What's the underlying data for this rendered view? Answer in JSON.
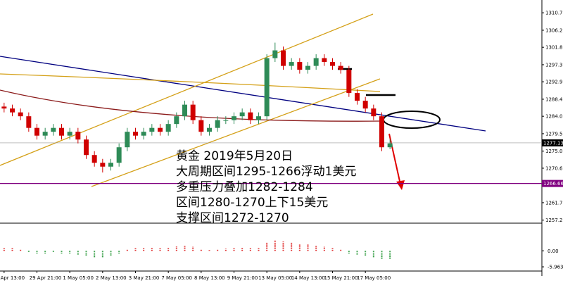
{
  "chart_data": {
    "type": "candlestick",
    "categories": [
      "Apr 13:00",
      null,
      null,
      null,
      "29 Apr 21:00",
      null,
      null,
      null,
      "1 May 05:00",
      null,
      null,
      null,
      "2 May 13:00",
      null,
      null,
      null,
      "3 May 21:00",
      null,
      null,
      null,
      "7 May 05:00",
      null,
      null,
      null,
      "8 May 13:00",
      null,
      null,
      null,
      "9 May 21:00",
      null,
      null,
      null,
      "13 May 05:00",
      null,
      null,
      null,
      "14 May 13:00",
      null,
      null,
      null,
      "15 May 21:00",
      null,
      null,
      null,
      "17 May 05:00",
      null,
      null,
      null
    ],
    "open": [
      1286.5,
      1286,
      1285,
      1284,
      1281,
      1279,
      1280,
      1281,
      1279,
      1280,
      1278,
      1274,
      1272,
      1271,
      1272,
      1276,
      1280,
      1279,
      1280,
      1281,
      1280,
      1282,
      1284,
      1287,
      1283,
      1280,
      1281,
      1283,
      1283,
      1284,
      1285,
      1283,
      1284,
      1299,
      1301,
      1297,
      1298,
      1296,
      1297,
      1299,
      1298,
      1297,
      1296,
      1290,
      1288,
      1286,
      1284,
      1276
    ],
    "close": [
      1286,
      1285,
      1284,
      1281,
      1279,
      1280,
      1281,
      1279,
      1280,
      1278,
      1274,
      1272,
      1271,
      1272,
      1276,
      1280,
      1279,
      1280,
      1281,
      1280,
      1282,
      1284,
      1287,
      1283,
      1280,
      1281,
      1283,
      1283,
      1284,
      1285,
      1283,
      1284,
      1299,
      1301,
      1297,
      1298,
      1296,
      1297,
      1299,
      1298,
      1297,
      1296,
      1290,
      1288,
      1286,
      1284,
      1276,
      1277
    ],
    "high": [
      1287.5,
      1287,
      1286,
      1285,
      1282,
      1281,
      1282,
      1282,
      1281,
      1281,
      1279,
      1275,
      1273,
      1273,
      1277,
      1281,
      1281,
      1281,
      1282,
      1282,
      1283,
      1285,
      1288,
      1288,
      1284,
      1282,
      1284,
      1284,
      1285,
      1286,
      1286,
      1285,
      1300,
      1303,
      1302,
      1299,
      1299,
      1298,
      1300,
      1300,
      1299,
      1298,
      1297,
      1291,
      1289,
      1287,
      1285,
      1278
    ],
    "low": [
      1285,
      1284,
      1283,
      1280,
      1278,
      1278,
      1279,
      1278,
      1278,
      1277,
      1273,
      1271,
      1269.5,
      1270,
      1271,
      1275,
      1278,
      1278,
      1279,
      1279,
      1279,
      1281,
      1283,
      1282,
      1279,
      1279,
      1280,
      1282,
      1282,
      1283,
      1282,
      1282,
      1283,
      1298,
      1296,
      1296,
      1295,
      1295,
      1296,
      1297,
      1296,
      1295,
      1289,
      1287,
      1285,
      1283,
      1275,
      1275.5
    ],
    "up_color": "#2e8b57",
    "down_color": "#d00000",
    "ylim": [
      1256.6,
      1314.0
    ],
    "yticks": [
      {
        "value": 1310.7,
        "label": "1310.70"
      },
      {
        "value": 1306.2,
        "label": "1306.20"
      },
      {
        "value": 1301.8,
        "label": "1301.80"
      },
      {
        "value": 1297.3,
        "label": "1297.30"
      },
      {
        "value": 1292.9,
        "label": "1292.90"
      },
      {
        "value": 1288.4,
        "label": "1288.40"
      },
      {
        "value": 1284.0,
        "label": "1284.00"
      },
      {
        "value": 1279.5,
        "label": "1279.50"
      },
      {
        "value": 1275.0,
        "label": "1275.00"
      },
      {
        "value": 1270.6,
        "label": "1270.60"
      },
      {
        "value": 1261.7,
        "label": "1261.70"
      },
      {
        "value": 1257.2,
        "label": "1257.20"
      }
    ],
    "current_price": 1277.13,
    "level_line": 1266.66,
    "level_color": "#800080",
    "annotations": [
      "黄金 2019年5月20日",
      "大周期区间1295-1266浮动1美元",
      "多重压力叠加1282-1284",
      "区间1280-1270上下15美元",
      "支撑区间1272-1270"
    ],
    "indicator": {
      "ylim": [
        -7,
        9
      ],
      "yticks": [
        {
          "value": 0,
          "label": "0.00"
        },
        {
          "value": -5.963,
          "label": "-5.963"
        }
      ],
      "values": [
        1,
        1,
        0.5,
        -0.5,
        -1,
        -1,
        -0.5,
        -1,
        -1,
        -1.5,
        -2,
        -2.5,
        -2.5,
        -2,
        -1,
        0.5,
        1,
        1,
        1.2,
        1,
        1.3,
        1.6,
        2,
        1.5,
        0.5,
        0.3,
        0.6,
        0.8,
        1,
        1.2,
        1,
        1,
        3,
        4,
        3.5,
        3,
        2.5,
        2.5,
        2,
        1.5,
        1,
        0.5,
        -1,
        -1.5,
        -2,
        -2.5,
        -3,
        -3
      ],
      "up_color": "#e03030",
      "down_color": "#2e9b3e"
    }
  }
}
